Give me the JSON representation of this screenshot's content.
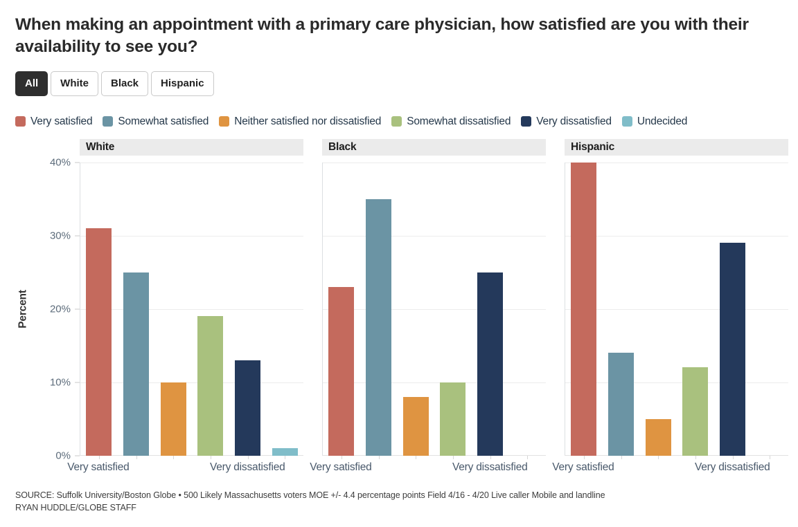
{
  "title": "When making an appointment with a primary care physician, how satisfied are you with their availability to see you?",
  "tabs": {
    "items": [
      {
        "label": "All",
        "selected": true
      },
      {
        "label": "White",
        "selected": false
      },
      {
        "label": "Black",
        "selected": false
      },
      {
        "label": "Hispanic",
        "selected": false
      }
    ]
  },
  "legend": {
    "items": [
      {
        "label": "Very satisfied",
        "color": "#c46a5d"
      },
      {
        "label": "Somewhat satisfied",
        "color": "#6b94a4"
      },
      {
        "label": "Neither satisfied nor dissatisfied",
        "color": "#df9441"
      },
      {
        "label": "Somewhat dissatisfied",
        "color": "#a9c17e"
      },
      {
        "label": "Very dissatisfied",
        "color": "#24395b"
      },
      {
        "label": "Undecided",
        "color": "#80bdc9"
      }
    ]
  },
  "chart_data": {
    "type": "bar",
    "categories": [
      "Very satisfied",
      "Somewhat satisfied",
      "Neither satisfied nor dissatisfied",
      "Somewhat dissatisfied",
      "Very dissatisfied",
      "Undecided"
    ],
    "panels": [
      {
        "title": "White",
        "values": [
          31,
          25,
          10,
          19,
          13,
          1
        ]
      },
      {
        "title": "Black",
        "values": [
          23,
          35,
          8,
          10,
          25,
          0
        ]
      },
      {
        "title": "Hispanic",
        "values": [
          40,
          14,
          5,
          12,
          29,
          0
        ]
      }
    ],
    "ylabel": "Percent",
    "ylim": [
      0,
      40
    ],
    "yticks": [
      "40%",
      "30%",
      "20%",
      "10%",
      "0%"
    ],
    "xtick_labels_shown": [
      "Very satisfied",
      "Very dissatisfied"
    ],
    "grid": true,
    "legend_position": "top"
  },
  "footer": {
    "source_line": "SOURCE: Suffolk University/Boston Globe • 500 Likely Massachusetts voters MOE +/- 4.4 percentage points Field 4/16 - 4/20 Live caller Mobile and landline",
    "credit_line": "RYAN HUDDLE/GLOBE STAFF"
  }
}
